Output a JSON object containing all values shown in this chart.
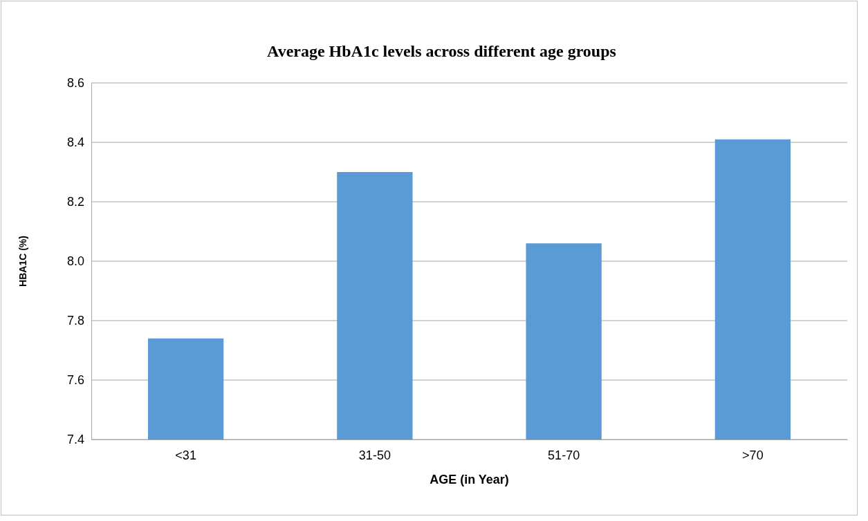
{
  "chart_data": {
    "type": "bar",
    "title": "Average HbA1c levels across different age groups",
    "xlabel": "AGE (in Year)",
    "ylabel": "HBA1C (%)",
    "categories": [
      "<31",
      "31-50",
      "51-70",
      ">70"
    ],
    "values": [
      7.74,
      8.3,
      8.06,
      8.41
    ],
    "color": "#5b9bd5",
    "ylim": [
      7.4,
      8.6
    ],
    "yticks": [
      {
        "value": 7.4,
        "label": "7.4"
      },
      {
        "value": 7.6,
        "label": "7.6"
      },
      {
        "value": 7.8,
        "label": "7.8"
      },
      {
        "value": 8.0,
        "label": "8.0"
      },
      {
        "value": 8.2,
        "label": "8.2"
      },
      {
        "value": 8.4,
        "label": "8.4"
      },
      {
        "value": 8.6,
        "label": "8.6"
      }
    ],
    "grid": "y"
  }
}
